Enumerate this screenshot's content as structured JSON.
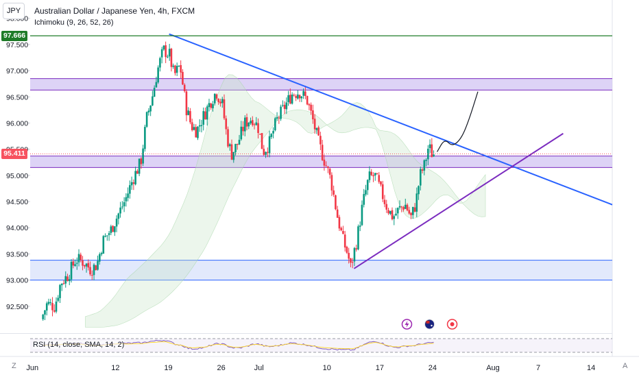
{
  "header": {
    "symbol_button": "JPY",
    "title": "Australian Dollar / Japanese Yen, 4h, FXCM",
    "indicator": "Ichimoku (9, 26, 52, 26)"
  },
  "rsi_panel": {
    "label": "RSI (14, close, SMA, 14, 2)"
  },
  "corner": {
    "left": "Z",
    "right": "A"
  },
  "colors": {
    "up": "#089981",
    "down": "#f23645",
    "trend_blue": "#2962ff",
    "trend_purple": "#7b2cbf",
    "zone_purple": "#d1c4f3",
    "zone_blue": "#d8e1fb",
    "resistance_green": "#1e7b28",
    "current_price_tag": "#f7525f",
    "high_tag": "#1e7b28"
  },
  "price_tags": {
    "high": "97.666",
    "current": "95.411"
  },
  "icons": [
    "lightning-icon",
    "australia-flag-icon",
    "record-icon"
  ],
  "chart_data": {
    "type": "candlestick",
    "title": "Australian Dollar / Japanese Yen, 4h, FXCM",
    "y_axis": {
      "ticks": [
        "98.000",
        "97.500",
        "97.000",
        "96.500",
        "96.000",
        "95.500",
        "95.000",
        "94.500",
        "94.000",
        "93.500",
        "93.000",
        "92.500"
      ],
      "range": [
        92.0,
        98.35
      ]
    },
    "x_axis": {
      "ticks": [
        {
          "label": "Jun",
          "day": 0
        },
        {
          "label": "12",
          "day": 11
        },
        {
          "label": "19",
          "day": 18
        },
        {
          "label": "26",
          "day": 25
        },
        {
          "label": "Jul",
          "day": 30
        },
        {
          "label": "10",
          "day": 39
        },
        {
          "label": "17",
          "day": 46
        },
        {
          "label": "24",
          "day": 53
        },
        {
          "label": "Aug",
          "day": 61
        },
        {
          "label": "7",
          "day": 67
        },
        {
          "label": "14",
          "day": 74
        }
      ],
      "range_days": [
        -0.3,
        76.8
      ]
    },
    "anchors": [
      {
        "day": 1.4,
        "price": 92.25
      },
      {
        "day": 2.2,
        "price": 92.55
      },
      {
        "day": 3.2,
        "price": 92.5
      },
      {
        "day": 4.0,
        "price": 92.95
      },
      {
        "day": 5.0,
        "price": 93.1
      },
      {
        "day": 6.0,
        "price": 93.4
      },
      {
        "day": 7.0,
        "price": 93.35
      },
      {
        "day": 8.0,
        "price": 93.2
      },
      {
        "day": 8.8,
        "price": 93.3
      },
      {
        "day": 9.6,
        "price": 93.75
      },
      {
        "day": 10.6,
        "price": 93.95
      },
      {
        "day": 11.6,
        "price": 94.25
      },
      {
        "day": 12.6,
        "price": 94.55
      },
      {
        "day": 13.6,
        "price": 94.95
      },
      {
        "day": 14.6,
        "price": 95.25
      },
      {
        "day": 15.4,
        "price": 96.1
      },
      {
        "day": 16.2,
        "price": 96.55
      },
      {
        "day": 16.8,
        "price": 97.0
      },
      {
        "day": 17.6,
        "price": 97.4
      },
      {
        "day": 18.4,
        "price": 97.3
      },
      {
        "day": 19.0,
        "price": 96.9
      },
      {
        "day": 19.8,
        "price": 97.1
      },
      {
        "day": 20.6,
        "price": 96.3
      },
      {
        "day": 21.3,
        "price": 95.95
      },
      {
        "day": 22.0,
        "price": 95.85
      },
      {
        "day": 22.8,
        "price": 96.1
      },
      {
        "day": 23.8,
        "price": 96.4
      },
      {
        "day": 24.6,
        "price": 96.6
      },
      {
        "day": 25.4,
        "price": 96.35
      },
      {
        "day": 26.0,
        "price": 95.75
      },
      {
        "day": 26.6,
        "price": 95.4
      },
      {
        "day": 27.4,
        "price": 95.6
      },
      {
        "day": 28.4,
        "price": 96.0
      },
      {
        "day": 29.4,
        "price": 96.1
      },
      {
        "day": 30.2,
        "price": 95.9
      },
      {
        "day": 30.8,
        "price": 95.45
      },
      {
        "day": 31.6,
        "price": 95.6
      },
      {
        "day": 32.6,
        "price": 96.05
      },
      {
        "day": 33.6,
        "price": 96.3
      },
      {
        "day": 34.6,
        "price": 96.55
      },
      {
        "day": 35.6,
        "price": 96.6
      },
      {
        "day": 36.6,
        "price": 96.45
      },
      {
        "day": 37.4,
        "price": 96.05
      },
      {
        "day": 38.2,
        "price": 95.6
      },
      {
        "day": 39.0,
        "price": 95.25
      },
      {
        "day": 39.8,
        "price": 94.9
      },
      {
        "day": 40.6,
        "price": 94.25
      },
      {
        "day": 41.4,
        "price": 93.75
      },
      {
        "day": 42.0,
        "price": 93.5
      },
      {
        "day": 42.4,
        "price": 93.25
      },
      {
        "day": 43.2,
        "price": 93.75
      },
      {
        "day": 44.0,
        "price": 94.45
      },
      {
        "day": 44.8,
        "price": 94.95
      },
      {
        "day": 45.6,
        "price": 95.0
      },
      {
        "day": 46.4,
        "price": 94.7
      },
      {
        "day": 47.2,
        "price": 94.4
      },
      {
        "day": 48.0,
        "price": 94.2
      },
      {
        "day": 48.8,
        "price": 94.35
      },
      {
        "day": 49.6,
        "price": 94.45
      },
      {
        "day": 50.4,
        "price": 94.2
      },
      {
        "day": 51.0,
        "price": 94.45
      },
      {
        "day": 51.6,
        "price": 95.0
      },
      {
        "day": 52.2,
        "price": 95.2
      },
      {
        "day": 52.7,
        "price": 95.55
      },
      {
        "day": 53.2,
        "price": 95.41
      }
    ],
    "lines": [
      {
        "name": "descending-trendline",
        "color": "#2962ff",
        "from": {
          "day": 18.1,
          "price": 97.7
        },
        "to": {
          "day": 76.8,
          "price": 94.44
        }
      },
      {
        "name": "ascending-trendline",
        "color": "#7b2cbf",
        "from": {
          "day": 42.6,
          "price": 93.22
        },
        "to": {
          "day": 70.3,
          "price": 95.8
        }
      },
      {
        "name": "resistance-level",
        "color": "#1e7b28",
        "from": {
          "day": -0.3,
          "price": 97.666
        },
        "to": {
          "day": 76.8,
          "price": 97.666
        }
      }
    ],
    "zones": [
      {
        "name": "resistance-zone",
        "color": "#d1c4f3",
        "border": "#7b2cbf",
        "low": 96.63,
        "high": 96.85
      },
      {
        "name": "support-zone-mid",
        "color": "#d1c4f3",
        "border": "#7b2cbf",
        "low": 95.15,
        "high": 95.37
      },
      {
        "name": "support-zone-low",
        "color": "#d8e1fb",
        "border": "#2962ff",
        "low": 93.0,
        "high": 93.38
      }
    ],
    "projection_path": [
      {
        "day": 53.6,
        "price": 95.45
      },
      {
        "day": 54.6,
        "price": 95.7
      },
      {
        "day": 55.6,
        "price": 95.55
      },
      {
        "day": 56.8,
        "price": 95.7
      },
      {
        "day": 57.8,
        "price": 96.05
      },
      {
        "day": 59.0,
        "price": 96.6
      }
    ],
    "rsi": {
      "upper": 70,
      "lower": 30
    }
  }
}
